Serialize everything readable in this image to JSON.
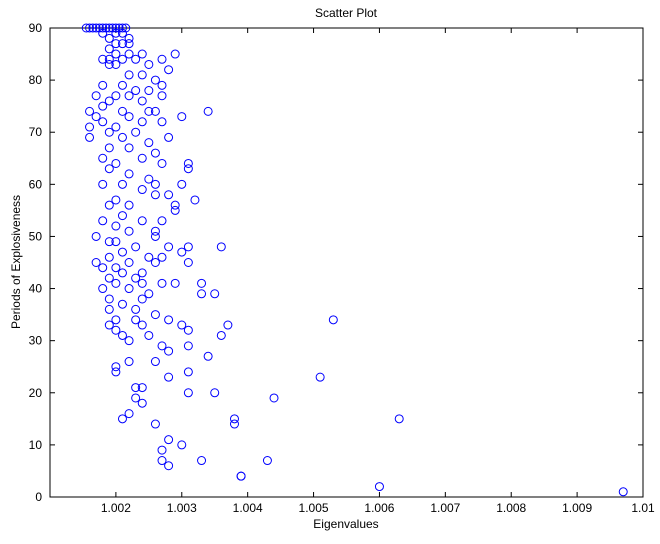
{
  "chart_data": {
    "type": "scatter",
    "title": "Scatter Plot",
    "x_label": "Eigenvalues",
    "y_label": "Periods of Explosiveness",
    "color": "#0000ff",
    "x": [
      1.00155,
      1.0016,
      1.00165,
      1.0017,
      1.00175,
      1.0018,
      1.00185,
      1.0019,
      1.00195,
      1.002,
      1.00205,
      1.0021,
      1.00215,
      1.0018,
      1.0019,
      1.002,
      1.0021,
      1.0022,
      1.0019,
      1.002,
      1.0021,
      1.0022,
      1.002,
      1.0019,
      1.0018,
      1.002,
      1.0021,
      1.0022,
      1.0019,
      1.0024,
      1.0029,
      1.0027,
      1.0028,
      1.0023,
      1.0025,
      1.0022,
      1.0024,
      1.0026,
      1.0027,
      1.0018,
      1.0021,
      1.0023,
      1.0025,
      1.0017,
      1.002,
      1.0022,
      1.0027,
      1.0019,
      1.0024,
      1.0018,
      1.0021,
      1.0016,
      1.0025,
      1.0026,
      1.0034,
      1.0017,
      1.0022,
      1.003,
      1.0024,
      1.0027,
      1.0018,
      1.0016,
      1.002,
      1.0023,
      1.0019,
      1.0021,
      1.0016,
      1.0028,
      1.0025,
      1.0019,
      1.0022,
      1.0026,
      1.0024,
      1.0018,
      1.002,
      1.0027,
      1.0031,
      1.0031,
      1.0019,
      1.0022,
      1.0025,
      1.0018,
      1.0021,
      1.003,
      1.0026,
      1.0024,
      1.0028,
      1.0026,
      1.002,
      1.0032,
      1.0022,
      1.0019,
      1.0029,
      1.0029,
      1.0021,
      1.0018,
      1.0024,
      1.0027,
      1.002,
      1.0022,
      1.0026,
      1.0017,
      1.0026,
      1.002,
      1.0019,
      1.0023,
      1.0028,
      1.0031,
      1.0036,
      1.003,
      1.0021,
      1.0019,
      1.0025,
      1.0027,
      1.0017,
      1.0022,
      1.0026,
      1.0031,
      1.002,
      1.0018,
      1.0024,
      1.0021,
      1.0019,
      1.0023,
      1.002,
      1.0024,
      1.0029,
      1.0027,
      1.0033,
      1.0018,
      1.0022,
      1.0025,
      1.0033,
      1.0035,
      1.0024,
      1.0019,
      1.0021,
      1.0023,
      1.0019,
      1.0026,
      1.002,
      1.0028,
      1.0023,
      1.0019,
      1.0024,
      1.003,
      1.0037,
      1.002,
      1.0031,
      1.0021,
      1.0025,
      1.0036,
      1.0022,
      1.0027,
      1.0031,
      1.0053,
      1.0028,
      1.0034,
      1.0022,
      1.0026,
      1.002,
      1.002,
      1.0031,
      1.0028,
      1.0051,
      1.0024,
      1.0023,
      1.0031,
      1.0035,
      1.0023,
      1.0024,
      1.0044,
      1.0022,
      1.0021,
      1.0038,
      1.0038,
      1.0026,
      1.0063,
      1.0028,
      1.003,
      1.0027,
      1.0033,
      1.0027,
      1.0043,
      1.0028,
      1.0039,
      1.0039,
      1.006,
      1.0097
    ],
    "values": [
      90,
      90,
      90,
      90,
      90,
      90,
      90,
      90,
      90,
      90,
      90,
      90,
      90,
      89,
      88,
      89,
      89,
      88,
      86,
      87,
      87,
      87,
      85,
      84,
      84,
      83,
      84,
      85,
      83,
      85,
      85,
      84,
      82,
      84,
      83,
      81,
      81,
      80,
      79,
      79,
      79,
      78,
      78,
      77,
      77,
      77,
      77,
      76,
      76,
      75,
      74,
      74,
      74,
      74,
      74,
      73,
      73,
      73,
      72,
      72,
      72,
      71,
      71,
      70,
      70,
      69,
      69,
      69,
      68,
      67,
      67,
      66,
      65,
      65,
      64,
      64,
      64,
      63,
      63,
      62,
      61,
      60,
      60,
      60,
      60,
      59,
      58,
      58,
      57,
      57,
      56,
      56,
      56,
      55,
      54,
      53,
      53,
      53,
      52,
      51,
      51,
      50,
      50,
      49,
      49,
      48,
      48,
      48,
      48,
      47,
      47,
      46,
      46,
      46,
      45,
      45,
      45,
      45,
      44,
      44,
      43,
      43,
      42,
      42,
      41,
      41,
      41,
      41,
      41,
      40,
      40,
      39,
      39,
      39,
      38,
      38,
      37,
      36,
      36,
      35,
      34,
      34,
      34,
      33,
      33,
      33,
      33,
      32,
      32,
      31,
      31,
      31,
      30,
      29,
      29,
      34,
      28,
      27,
      26,
      26,
      25,
      24,
      24,
      23,
      23,
      21,
      21,
      20,
      20,
      19,
      18,
      19,
      16,
      15,
      15,
      14,
      14,
      15,
      11,
      10,
      9,
      7,
      7,
      7,
      6,
      4,
      4,
      2,
      1
    ],
    "xlim": [
      1.001,
      1.01
    ],
    "xticks": [
      1.002,
      1.003,
      1.004,
      1.005,
      1.006,
      1.007,
      1.008,
      1.009,
      1.01
    ],
    "ylim": [
      0,
      90
    ],
    "yticks": [
      0,
      10,
      20,
      30,
      40,
      50,
      60,
      70,
      80,
      90
    ]
  }
}
